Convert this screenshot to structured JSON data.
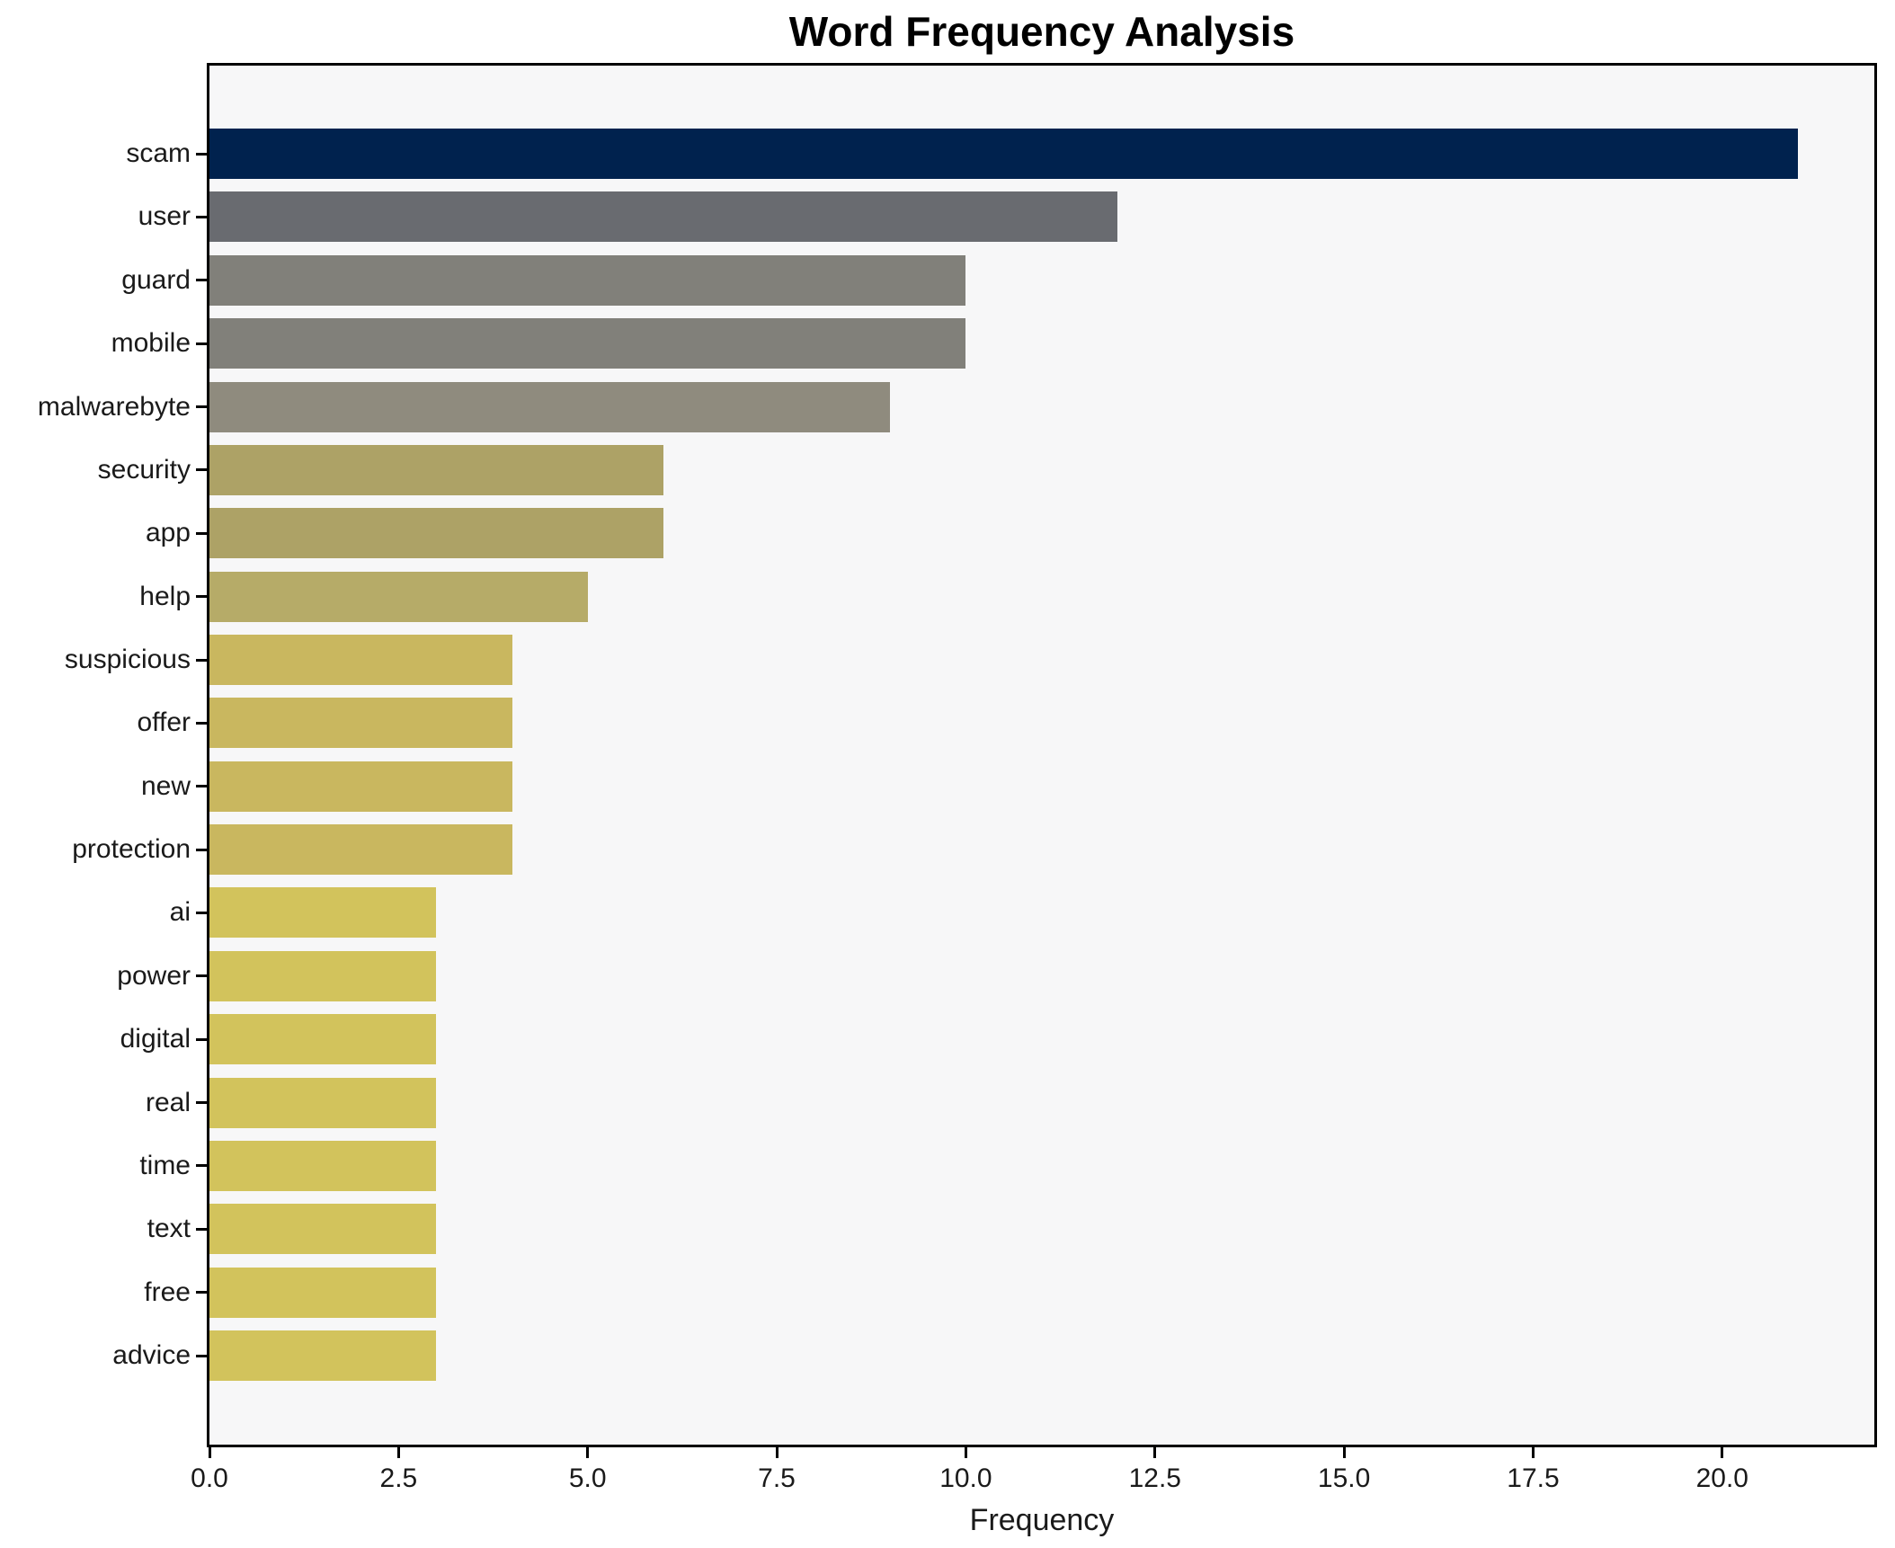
{
  "chart_data": {
    "type": "bar",
    "orientation": "horizontal",
    "title": "Word Frequency Analysis",
    "xlabel": "Frequency",
    "ylabel": "",
    "categories": [
      "scam",
      "user",
      "guard",
      "mobile",
      "malwarebyte",
      "security",
      "app",
      "help",
      "suspicious",
      "offer",
      "new",
      "protection",
      "ai",
      "power",
      "digital",
      "real",
      "time",
      "text",
      "free",
      "advice"
    ],
    "values": [
      21,
      12,
      10,
      10,
      9,
      6,
      6,
      5,
      4,
      4,
      4,
      4,
      3,
      3,
      3,
      3,
      3,
      3,
      3,
      3
    ],
    "bar_colors": [
      "#00224e",
      "#696b70",
      "#81807a",
      "#81807a",
      "#8f8b7e",
      "#ada266",
      "#ada266",
      "#b6ab68",
      "#c9b75f",
      "#c9b75f",
      "#c9b75f",
      "#c9b75f",
      "#d2c35c",
      "#d2c35c",
      "#d2c35c",
      "#d2c35c",
      "#d2c35c",
      "#d2c35c",
      "#d2c35c",
      "#d2c35c"
    ],
    "xlim": [
      0,
      22
    ],
    "xticks": [
      0.0,
      2.5,
      5.0,
      7.5,
      10.0,
      12.5,
      15.0,
      17.5,
      20.0
    ],
    "xtick_labels": [
      "0.0",
      "2.5",
      "5.0",
      "7.5",
      "10.0",
      "12.5",
      "15.0",
      "17.5",
      "20.0"
    ],
    "grid": false,
    "legend": null,
    "plot_background": "#f7f7f8",
    "figure_background": "#ffffff",
    "spine_color": "#000000"
  }
}
